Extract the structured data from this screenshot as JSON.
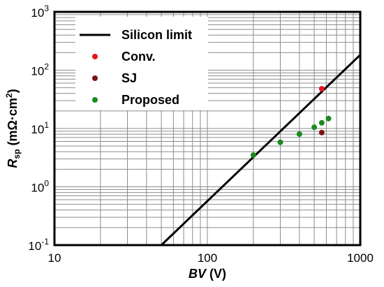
{
  "chart_data": {
    "type": "scatter",
    "xscale": "log",
    "yscale": "log",
    "xlim": [
      10,
      1000
    ],
    "ylim": [
      0.1,
      1000
    ],
    "grid": true,
    "legend_position": "top-left",
    "xlabel": {
      "italic": "BV",
      "rest": " (V)"
    },
    "ylabel": {
      "italic": "R",
      "sub": "sp",
      "rest": " (mΩ·cm",
      "sup": "2",
      "close": ")"
    },
    "x_ticks": [
      {
        "value": 10,
        "label": "10"
      },
      {
        "value": 100,
        "label": "100"
      },
      {
        "value": 1000,
        "label": "1000"
      }
    ],
    "y_ticks": [
      {
        "value": 0.1,
        "base": "10",
        "exp": "-1"
      },
      {
        "value": 1,
        "base": "10",
        "exp": "0"
      },
      {
        "value": 10,
        "base": "10",
        "exp": "1"
      },
      {
        "value": 100,
        "base": "10",
        "exp": "2"
      },
      {
        "value": 1000,
        "base": "10",
        "exp": "3"
      }
    ],
    "line": {
      "name": "Silicon limit",
      "color": "#000000",
      "x": [
        50,
        1000
      ],
      "y": [
        0.1,
        183
      ]
    },
    "series": [
      {
        "name": "Conv.",
        "color": "#e8161d",
        "points": [
          [
            560,
            48
          ]
        ]
      },
      {
        "name": "SJ",
        "color": "#7b1414",
        "points": [
          [
            560,
            8.5
          ]
        ]
      },
      {
        "name": "Proposed",
        "color": "#1a8a1f",
        "points": [
          [
            200,
            3.5
          ],
          [
            300,
            5.8
          ],
          [
            400,
            8.0
          ],
          [
            500,
            10.5
          ],
          [
            560,
            12.5
          ],
          [
            620,
            14.8
          ]
        ]
      }
    ]
  }
}
